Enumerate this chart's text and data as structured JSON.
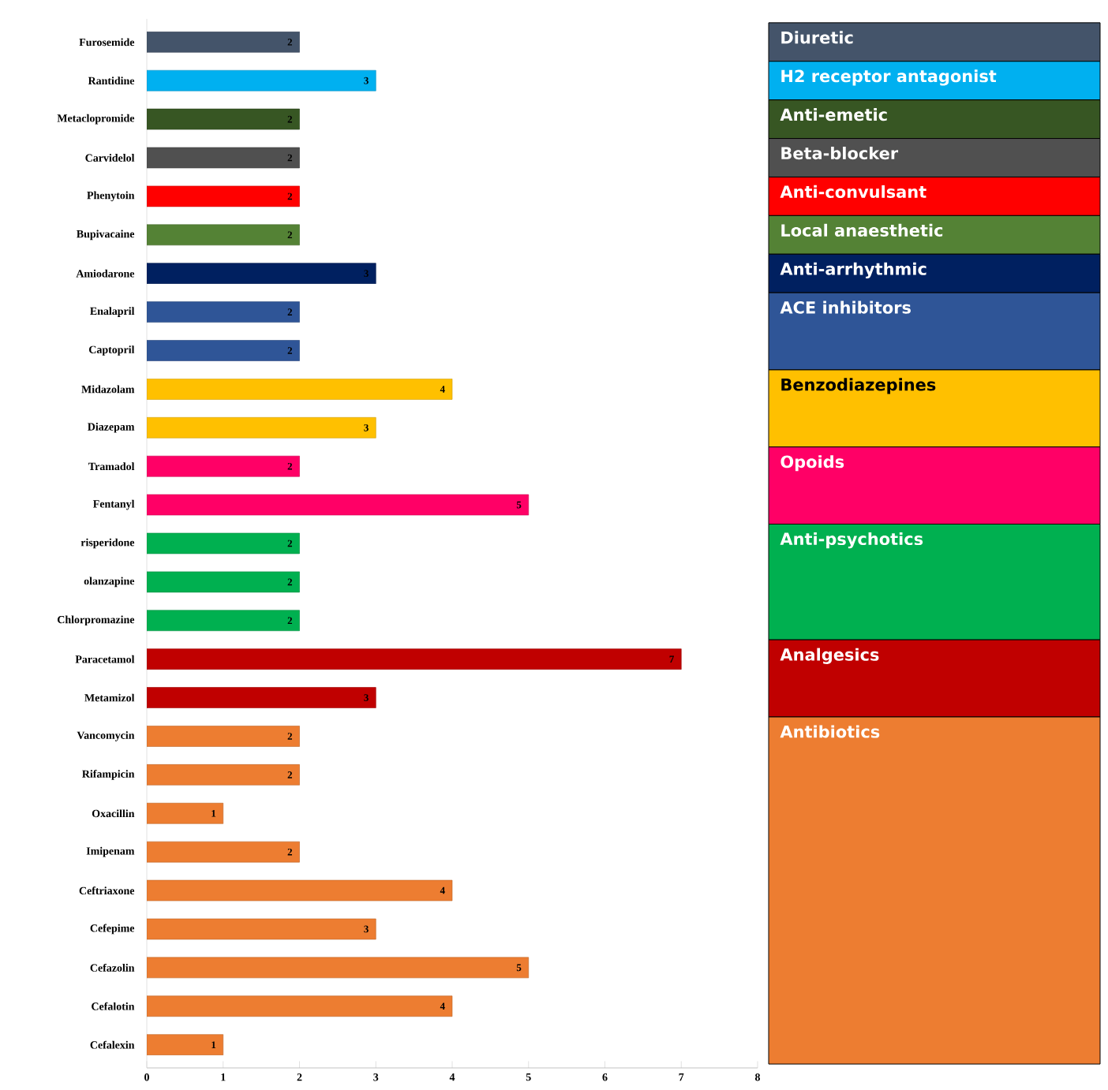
{
  "chart_data": {
    "type": "bar",
    "orientation": "horizontal",
    "categories": [
      "Furosemide",
      "Rantidine",
      "Metaclopromide",
      "Carvidelol",
      "Phenytoin",
      "Bupivacaine",
      "Amiodarone",
      "Enalapril",
      "Captopril",
      "Midazolam",
      "Diazepam",
      "Tramadol",
      "Fentanyl",
      "risperidone",
      "olanzapine",
      "Chlorpromazine",
      "Paracetamol",
      "Metamizol",
      "Vancomycin",
      "Rifampicin",
      "Oxacillin",
      "Imipenam",
      "Ceftriaxone",
      "Cefepime",
      "Cefazolin",
      "Cefalotin",
      "Cefalexin"
    ],
    "series": [
      {
        "name": "Diuretic",
        "color": "#44546a",
        "values": [
          2,
          null,
          null,
          null,
          null,
          null,
          null,
          null,
          null,
          null,
          null,
          null,
          null,
          null,
          null,
          null,
          null,
          null,
          null,
          null,
          null,
          null,
          null,
          null,
          null,
          null,
          null
        ]
      },
      {
        "name": "H2 receptor antagonist",
        "color": "#00b0f0",
        "values": [
          null,
          3,
          null,
          null,
          null,
          null,
          null,
          null,
          null,
          null,
          null,
          null,
          null,
          null,
          null,
          null,
          null,
          null,
          null,
          null,
          null,
          null,
          null,
          null,
          null,
          null,
          null
        ]
      },
      {
        "name": "Anti-emetic",
        "color": "#375623",
        "values": [
          null,
          null,
          2,
          null,
          null,
          null,
          null,
          null,
          null,
          null,
          null,
          null,
          null,
          null,
          null,
          null,
          null,
          null,
          null,
          null,
          null,
          null,
          null,
          null,
          null,
          null,
          null
        ]
      },
      {
        "name": "Beta-blocker",
        "color": "#505050",
        "values": [
          null,
          null,
          null,
          2,
          null,
          null,
          null,
          null,
          null,
          null,
          null,
          null,
          null,
          null,
          null,
          null,
          null,
          null,
          null,
          null,
          null,
          null,
          null,
          null,
          null,
          null,
          null
        ]
      },
      {
        "name": "Anti-convulsant",
        "color": "#ff0000",
        "values": [
          null,
          null,
          null,
          null,
          2,
          null,
          null,
          null,
          null,
          null,
          null,
          null,
          null,
          null,
          null,
          null,
          null,
          null,
          null,
          null,
          null,
          null,
          null,
          null,
          null,
          null,
          null
        ]
      },
      {
        "name": "Local anaesthetic",
        "color": "#548235",
        "values": [
          null,
          null,
          null,
          null,
          null,
          2,
          null,
          null,
          null,
          null,
          null,
          null,
          null,
          null,
          null,
          null,
          null,
          null,
          null,
          null,
          null,
          null,
          null,
          null,
          null,
          null,
          null
        ]
      },
      {
        "name": "Anti-arrhythmic",
        "color": "#002060",
        "values": [
          null,
          null,
          null,
          null,
          null,
          null,
          3,
          null,
          null,
          null,
          null,
          null,
          null,
          null,
          null,
          null,
          null,
          null,
          null,
          null,
          null,
          null,
          null,
          null,
          null,
          null,
          null
        ]
      },
      {
        "name": "ACE inhibitors",
        "color": "#2f5597",
        "values": [
          null,
          null,
          null,
          null,
          null,
          null,
          null,
          2,
          2,
          null,
          null,
          null,
          null,
          null,
          null,
          null,
          null,
          null,
          null,
          null,
          null,
          null,
          null,
          null,
          null,
          null,
          null
        ]
      },
      {
        "name": "Benzodiazepines",
        "color": "#ffc000",
        "values": [
          null,
          null,
          null,
          null,
          null,
          null,
          null,
          null,
          null,
          4,
          3,
          null,
          null,
          null,
          null,
          null,
          null,
          null,
          null,
          null,
          null,
          null,
          null,
          null,
          null,
          null,
          null
        ]
      },
      {
        "name": "Opoids",
        "color": "#ff0066",
        "values": [
          null,
          null,
          null,
          null,
          null,
          null,
          null,
          null,
          null,
          null,
          null,
          2,
          5,
          null,
          null,
          null,
          null,
          null,
          null,
          null,
          null,
          null,
          null,
          null,
          null,
          null,
          null
        ]
      },
      {
        "name": "Anti-psychotics",
        "color": "#00b050",
        "values": [
          null,
          null,
          null,
          null,
          null,
          null,
          null,
          null,
          null,
          null,
          null,
          null,
          null,
          2,
          2,
          2,
          null,
          null,
          null,
          null,
          null,
          null,
          null,
          null,
          null,
          null,
          null
        ]
      },
      {
        "name": "Analgesics",
        "color": "#c00000",
        "values": [
          null,
          null,
          null,
          null,
          null,
          null,
          null,
          null,
          null,
          null,
          null,
          null,
          null,
          null,
          null,
          null,
          7,
          3,
          null,
          null,
          null,
          null,
          null,
          null,
          null,
          null,
          null
        ]
      },
      {
        "name": "Antibiotics",
        "color": "#ed7d31",
        "values": [
          null,
          null,
          null,
          null,
          null,
          null,
          null,
          null,
          null,
          null,
          null,
          null,
          null,
          null,
          null,
          null,
          null,
          null,
          2,
          2,
          1,
          2,
          4,
          3,
          5,
          4,
          1
        ]
      }
    ],
    "xlim": [
      0,
      8
    ],
    "xticks": [
      0,
      1,
      2,
      3,
      4,
      5,
      6,
      7,
      8
    ],
    "data_labels": true,
    "legend": "right"
  }
}
